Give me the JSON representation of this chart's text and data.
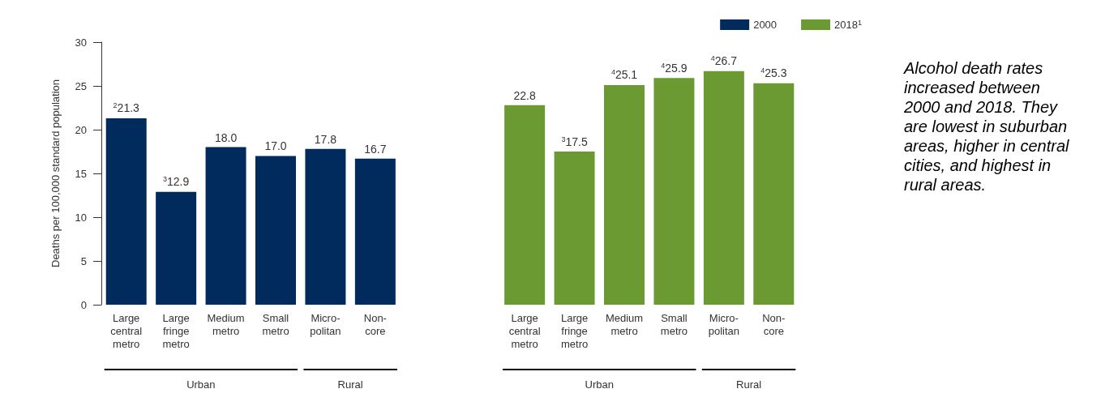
{
  "chart_data": {
    "type": "bar",
    "ylabel": "Deaths per 100,000 standard population",
    "categories": [
      "Large central metro",
      "Large fringe metro",
      "Medium metro",
      "Small metro",
      "Micro-politan",
      "Non-core",
      null,
      null,
      "Large central metro",
      "Large fringe metro",
      "Medium metro",
      "Small metro",
      "Micro-politan",
      "Non-core"
    ],
    "series": [
      {
        "name": "2000",
        "color": "#002b5c",
        "values": [
          21.3,
          12.9,
          18.0,
          17.0,
          17.8,
          16.7,
          null,
          null,
          null,
          null,
          null,
          null,
          null,
          null
        ],
        "value_labels": [
          "$^{2}$21.3",
          "$^{3}$12.9",
          "18.0",
          "17.0",
          "17.8",
          "16.7",
          null,
          null,
          null,
          null,
          null,
          null,
          null,
          null
        ]
      },
      {
        "name": "2018$^{1}$",
        "color": "#6b9a33",
        "values": [
          null,
          null,
          null,
          null,
          null,
          null,
          null,
          null,
          22.8,
          17.5,
          25.1,
          25.9,
          26.7,
          25.3
        ],
        "value_labels": [
          null,
          null,
          null,
          null,
          null,
          null,
          null,
          null,
          "22.8",
          "$^{3}$17.5",
          "$^{4}$25.1",
          "$^{4}$25.9",
          "$^{4}$26.7",
          "$^{4}$25.3"
        ]
      }
    ],
    "ylim": [
      0,
      30
    ],
    "yticks": [
      0,
      5,
      10,
      15,
      20,
      25,
      30
    ],
    "grid": false,
    "legend": "top right",
    "annotations": [
      "Urban",
      "Rural",
      "Urban",
      "Rural",
      "Alcohol death rates increased between 2000 and 2018. They are lowest in suburban areas, higher in central cities, and highest in rural areas."
    ]
  }
}
